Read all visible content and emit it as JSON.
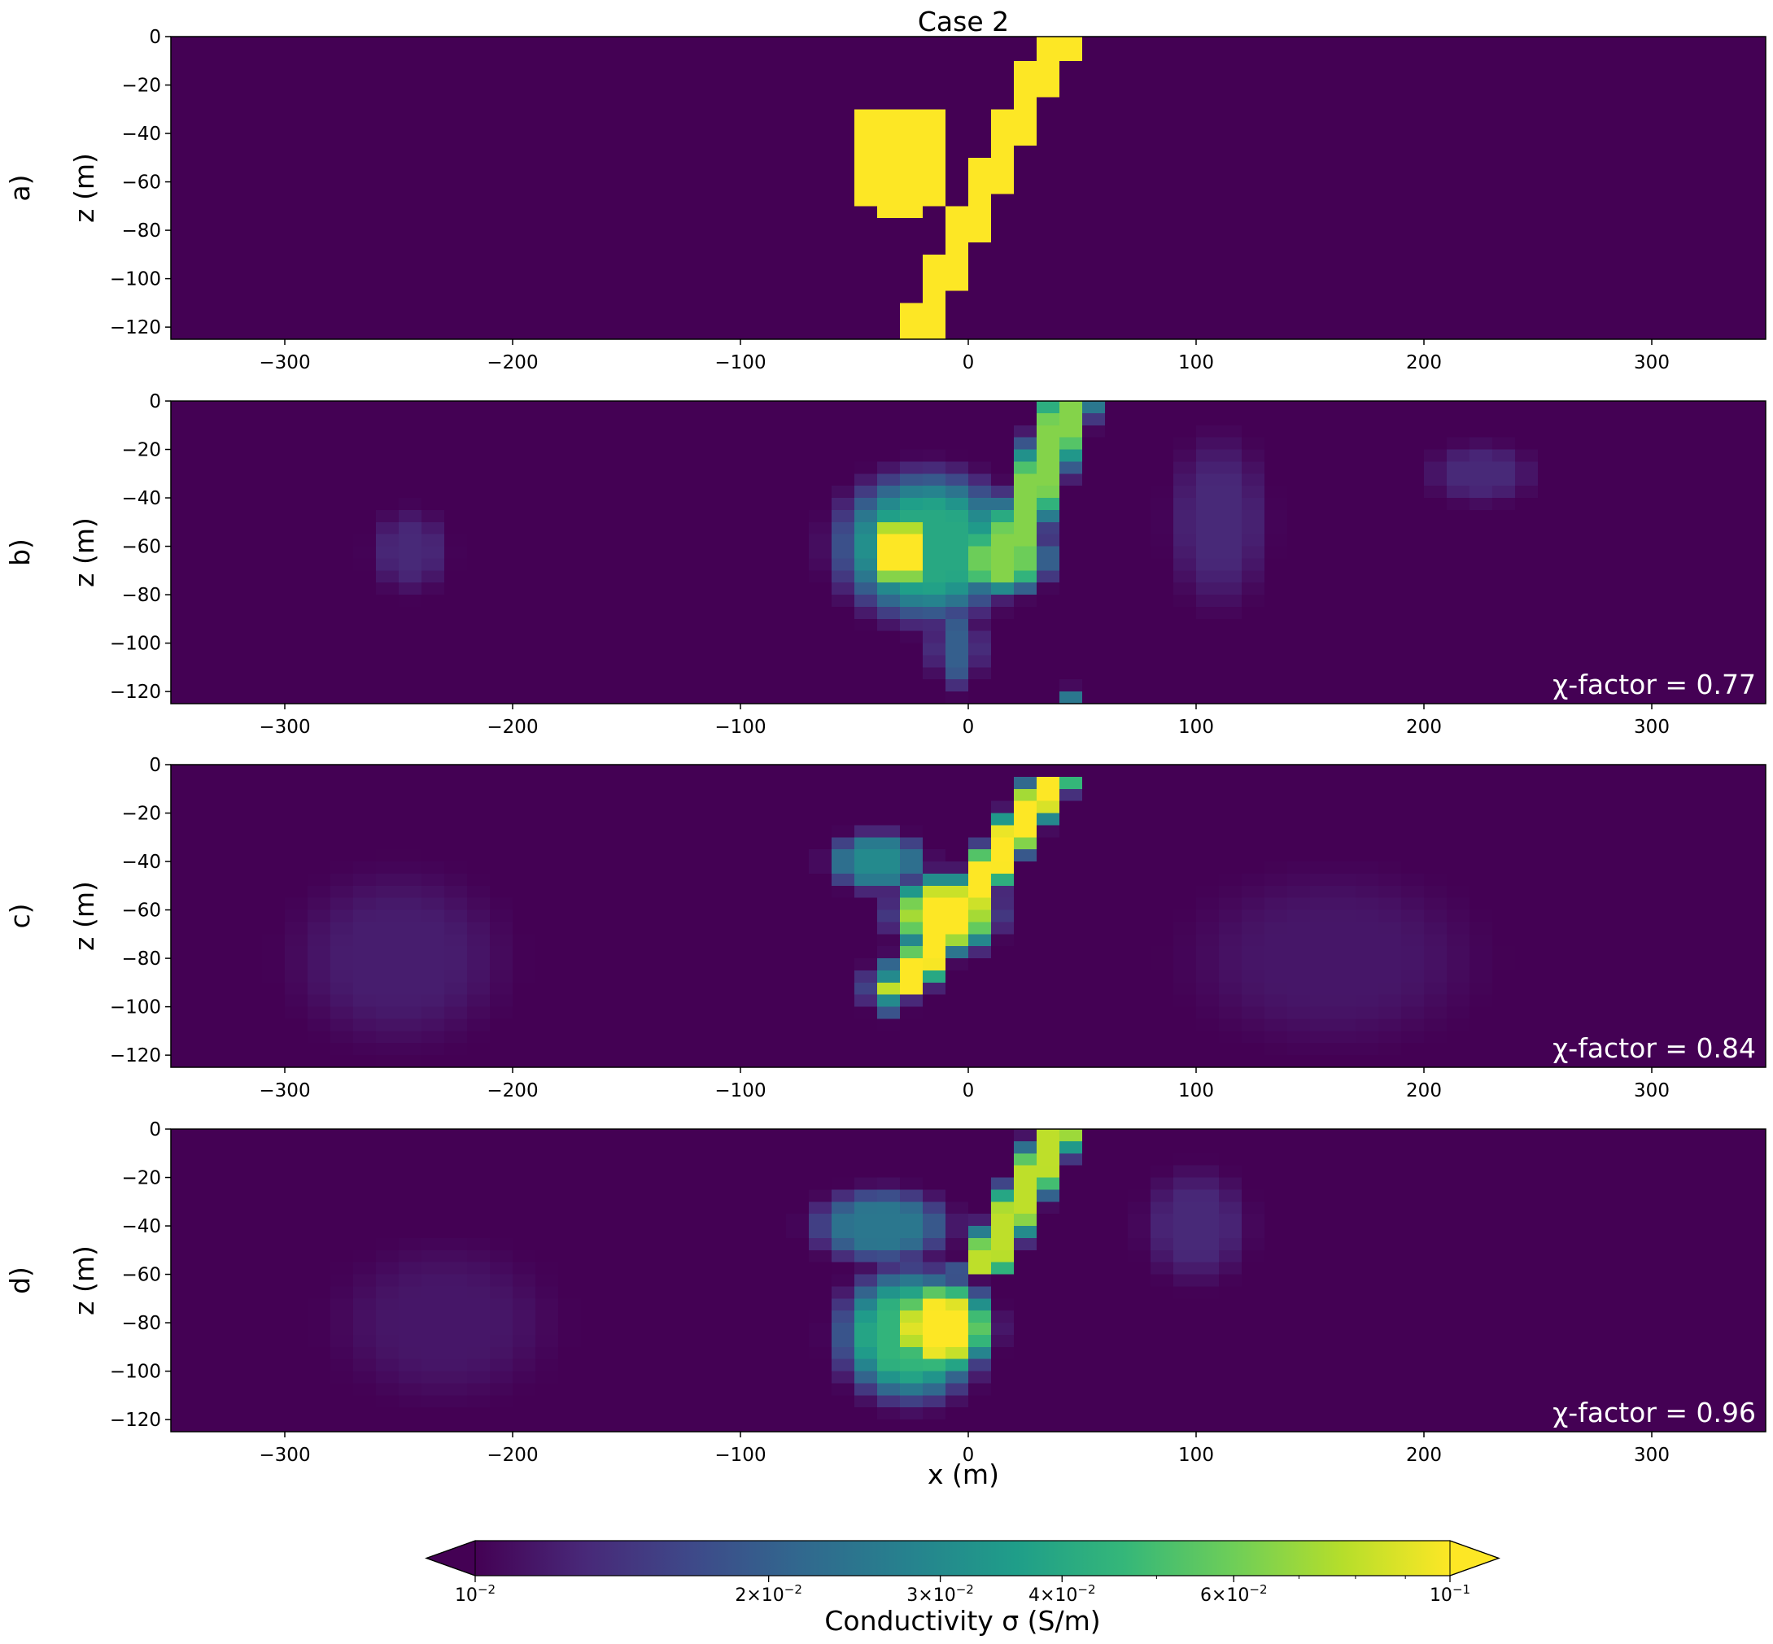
{
  "figure": {
    "title": "Case 2",
    "xlabel": "x (m)",
    "colorbar_label": "Conductivity σ (S/m)"
  },
  "chart_data": {
    "type": "heatmap",
    "title": "Case 2",
    "xlim": [
      -350,
      350
    ],
    "ylim": [
      -125,
      0
    ],
    "x_ticks": [
      -300,
      -200,
      -100,
      0,
      100,
      200,
      300
    ],
    "x_tick_labels": [
      "−300",
      "−200",
      "−100",
      "0",
      "100",
      "200",
      "300"
    ],
    "y_ticks": [
      0,
      -20,
      -40,
      -60,
      -80,
      -100,
      -120
    ],
    "y_tick_labels": [
      "0",
      "−20",
      "−40",
      "−60",
      "−80",
      "−100",
      "−120"
    ],
    "xlabel": "x (m)",
    "ylabel": "z (m)",
    "colormap": "viridis",
    "colors": {
      "low": "#440154",
      "high": "#fde725",
      "palette": [
        "#440154",
        "#482878",
        "#3e4989",
        "#31688e",
        "#26828e",
        "#1f9e89",
        "#35b779",
        "#6ece58",
        "#b5de2b",
        "#fde725"
      ]
    },
    "color_scale": {
      "type": "log",
      "min": 0.01,
      "max": 0.1,
      "extend": "both",
      "tick_values": [
        0.01,
        0.02,
        0.03,
        0.04,
        0.06,
        0.1
      ],
      "tick_labels": [
        {
          "base": "10",
          "exp": "−2"
        },
        {
          "base": "2×10",
          "exp": "−2"
        },
        {
          "base": "3×10",
          "exp": "−2"
        },
        {
          "base": "4×10",
          "exp": "−2"
        },
        {
          "base": "6×10",
          "exp": "−2"
        },
        {
          "base": "10",
          "exp": "−1"
        }
      ],
      "label": "Conductivity σ (S/m)"
    },
    "panels": [
      {
        "label": "a)",
        "annotation": "",
        "kind": "true_model",
        "background": 0.01,
        "anomalies": [
          {
            "shape": "circle",
            "cx": -30,
            "cz": -52,
            "r": 25,
            "sigma": 0.1
          },
          {
            "shape": "dipping_dike",
            "x_top": 40,
            "x_bottom": -25,
            "z_top": 0,
            "z_bottom": -125,
            "width": 18,
            "sigma": 0.1
          }
        ]
      },
      {
        "label": "b)",
        "annotation": "χ-factor = 0.77",
        "kind": "recovered_model",
        "background": 0.01,
        "anomalies": [
          {
            "shape": "blob",
            "cx": -30,
            "cz": -62,
            "rx": 22,
            "rz": 22,
            "sigma": 0.1
          },
          {
            "shape": "blob",
            "cx": -18,
            "cz": -60,
            "rx": 52,
            "rz": 40,
            "sigma": 0.04
          },
          {
            "shape": "blob",
            "cx": 15,
            "cz": -65,
            "rx": 28,
            "rz": 20,
            "sigma": 0.06
          },
          {
            "shape": "dipping_dike",
            "x_top": 45,
            "x_bottom": 12,
            "z_top": 0,
            "z_bottom": -75,
            "width": 22,
            "sigma": 0.065
          },
          {
            "shape": "blob",
            "cx": -5,
            "cz": -102,
            "rx": 14,
            "rz": 22,
            "sigma": 0.02
          },
          {
            "shape": "blob",
            "cx": 45,
            "cz": -122,
            "rx": 10,
            "rz": 5,
            "sigma": 0.025
          },
          {
            "shape": "blob",
            "cx": -245,
            "cz": -62,
            "rx": 22,
            "rz": 22,
            "sigma": 0.013
          },
          {
            "shape": "blob",
            "cx": 110,
            "cz": -50,
            "rx": 28,
            "rz": 45,
            "sigma": 0.013
          },
          {
            "shape": "blob",
            "cx": 225,
            "cz": -30,
            "rx": 30,
            "rz": 16,
            "sigma": 0.013
          }
        ]
      },
      {
        "label": "c)",
        "annotation": "χ-factor = 0.84",
        "kind": "recovered_model",
        "background": 0.01,
        "anomalies": [
          {
            "shape": "dipping_dike",
            "x_top": 38,
            "x_bottom": -30,
            "z_top": -5,
            "z_bottom": -95,
            "width": 20,
            "sigma": 0.1
          },
          {
            "shape": "blob",
            "cx": -10,
            "cz": -62,
            "rx": 30,
            "rz": 22,
            "sigma": 0.1
          },
          {
            "shape": "blob",
            "cx": -40,
            "cz": -40,
            "rx": 28,
            "rz": 16,
            "sigma": 0.03
          },
          {
            "shape": "blob",
            "cx": -35,
            "cz": -92,
            "rx": 14,
            "rz": 16,
            "sigma": 0.03
          },
          {
            "shape": "blob",
            "cx": -250,
            "cz": -80,
            "rx": 60,
            "rz": 45,
            "sigma": 0.012
          },
          {
            "shape": "blob",
            "cx": 160,
            "cz": -80,
            "rx": 80,
            "rz": 45,
            "sigma": 0.0115
          }
        ]
      },
      {
        "label": "d)",
        "annotation": "χ-factor = 0.96",
        "kind": "recovered_model",
        "background": 0.01,
        "anomalies": [
          {
            "shape": "dipping_dike",
            "x_top": 40,
            "x_bottom": 5,
            "z_top": 0,
            "z_bottom": -60,
            "width": 20,
            "sigma": 0.08
          },
          {
            "shape": "blob",
            "cx": -12,
            "cz": -82,
            "rx": 30,
            "rz": 26,
            "sigma": 0.1
          },
          {
            "shape": "blob",
            "cx": -25,
            "cz": -85,
            "rx": 42,
            "rz": 36,
            "sigma": 0.045
          },
          {
            "shape": "blob",
            "cx": -38,
            "cz": -40,
            "rx": 40,
            "rz": 20,
            "sigma": 0.025
          },
          {
            "shape": "blob",
            "cx": 100,
            "cz": -40,
            "rx": 30,
            "rz": 30,
            "sigma": 0.013
          },
          {
            "shape": "blob",
            "cx": -230,
            "cz": -80,
            "rx": 60,
            "rz": 40,
            "sigma": 0.0115
          }
        ]
      }
    ]
  }
}
